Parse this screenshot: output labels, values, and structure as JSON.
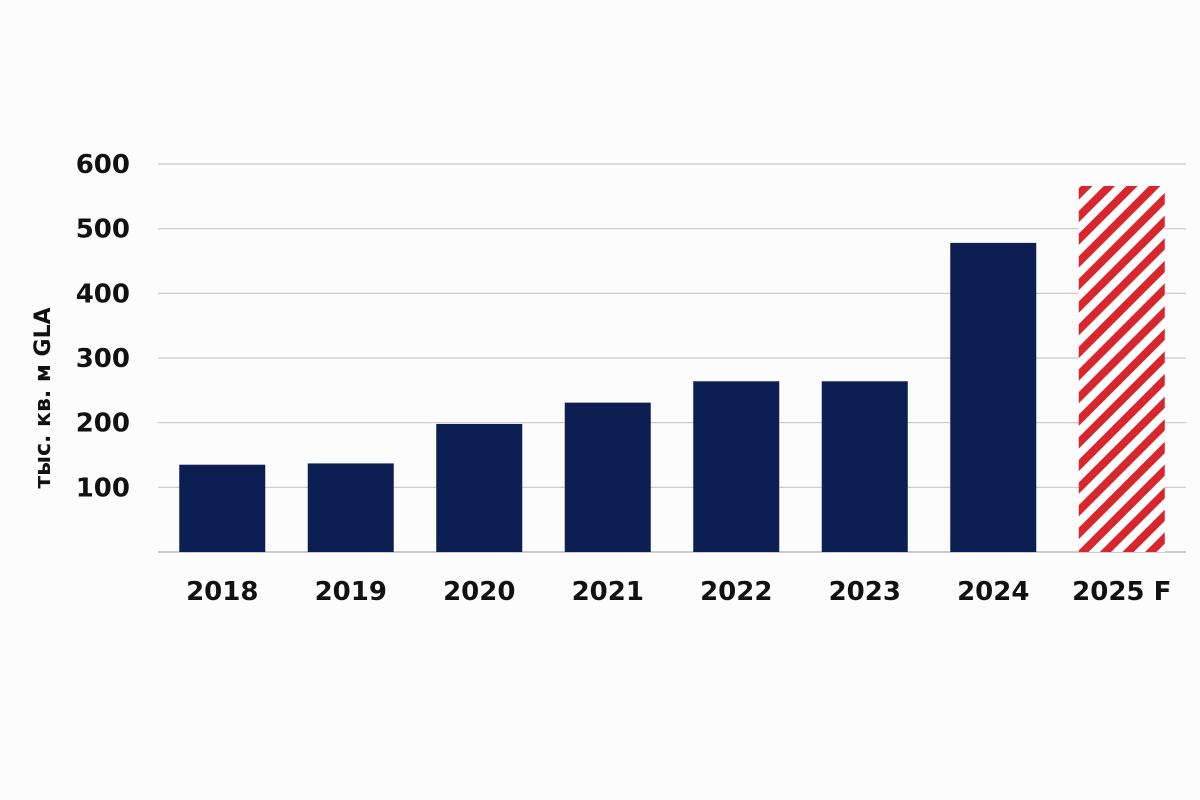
{
  "chart_data": {
    "type": "bar",
    "categories": [
      "2018",
      "2019",
      "2020",
      "2021",
      "2022",
      "2023",
      "2024",
      "2025 F"
    ],
    "values": [
      135,
      137,
      198,
      231,
      264,
      264,
      478,
      566
    ],
    "forecast": [
      false,
      false,
      false,
      false,
      false,
      false,
      false,
      true
    ],
    "ylabel": "тыс. кв. м GLA",
    "ylim": [
      0,
      600
    ],
    "yticks": [
      100,
      200,
      300,
      400,
      500,
      600
    ],
    "grid": true,
    "colors": {
      "bar": "#0d1f52",
      "forecast_stripe": "#d8262c",
      "forecast_background": "#ffffff"
    }
  }
}
